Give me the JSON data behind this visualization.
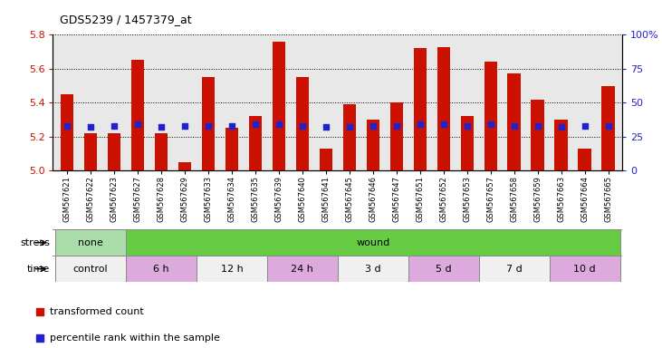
{
  "title": "GDS5239 / 1457379_at",
  "samples": [
    "GSM567621",
    "GSM567622",
    "GSM567623",
    "GSM567627",
    "GSM567628",
    "GSM567629",
    "GSM567633",
    "GSM567634",
    "GSM567635",
    "GSM567639",
    "GSM567640",
    "GSM567641",
    "GSM567645",
    "GSM567646",
    "GSM567647",
    "GSM567651",
    "GSM567652",
    "GSM567653",
    "GSM567657",
    "GSM567658",
    "GSM567659",
    "GSM567663",
    "GSM567664",
    "GSM567665"
  ],
  "transformed_count": [
    5.45,
    5.22,
    5.22,
    5.65,
    5.22,
    5.05,
    5.55,
    5.25,
    5.32,
    5.76,
    5.55,
    5.13,
    5.39,
    5.3,
    5.4,
    5.72,
    5.73,
    5.32,
    5.64,
    5.57,
    5.42,
    5.3,
    5.13,
    5.5
  ],
  "percentile_rank": [
    33,
    32,
    33,
    34,
    32,
    33,
    33,
    33,
    34,
    34,
    33,
    32,
    32,
    33,
    33,
    34,
    34,
    33,
    34,
    33,
    33,
    32,
    33,
    33
  ],
  "y_min": 5.0,
  "y_max": 5.8,
  "y_ticks": [
    5.0,
    5.2,
    5.4,
    5.6,
    5.8
  ],
  "y2_ticks": [
    0,
    25,
    50,
    75,
    100
  ],
  "y2_tick_labels": [
    "0",
    "25",
    "50",
    "75",
    "100%"
  ],
  "bar_color": "#cc1100",
  "marker_color": "#2222cc",
  "bg_color": "#e8e8e8",
  "stress_groups": [
    {
      "label": "none",
      "start": 0,
      "end": 3,
      "color": "#aaddaa"
    },
    {
      "label": "wound",
      "start": 3,
      "end": 24,
      "color": "#66cc44"
    }
  ],
  "time_groups": [
    {
      "label": "control",
      "start": 0,
      "end": 3,
      "color": "#f0f0f0"
    },
    {
      "label": "6 h",
      "start": 3,
      "end": 6,
      "color": "#ddaadd"
    },
    {
      "label": "12 h",
      "start": 6,
      "end": 9,
      "color": "#f0f0f0"
    },
    {
      "label": "24 h",
      "start": 9,
      "end": 12,
      "color": "#ddaadd"
    },
    {
      "label": "3 d",
      "start": 12,
      "end": 15,
      "color": "#f0f0f0"
    },
    {
      "label": "5 d",
      "start": 15,
      "end": 18,
      "color": "#ddaadd"
    },
    {
      "label": "7 d",
      "start": 18,
      "end": 21,
      "color": "#f0f0f0"
    },
    {
      "label": "10 d",
      "start": 21,
      "end": 24,
      "color": "#ddaadd"
    }
  ]
}
